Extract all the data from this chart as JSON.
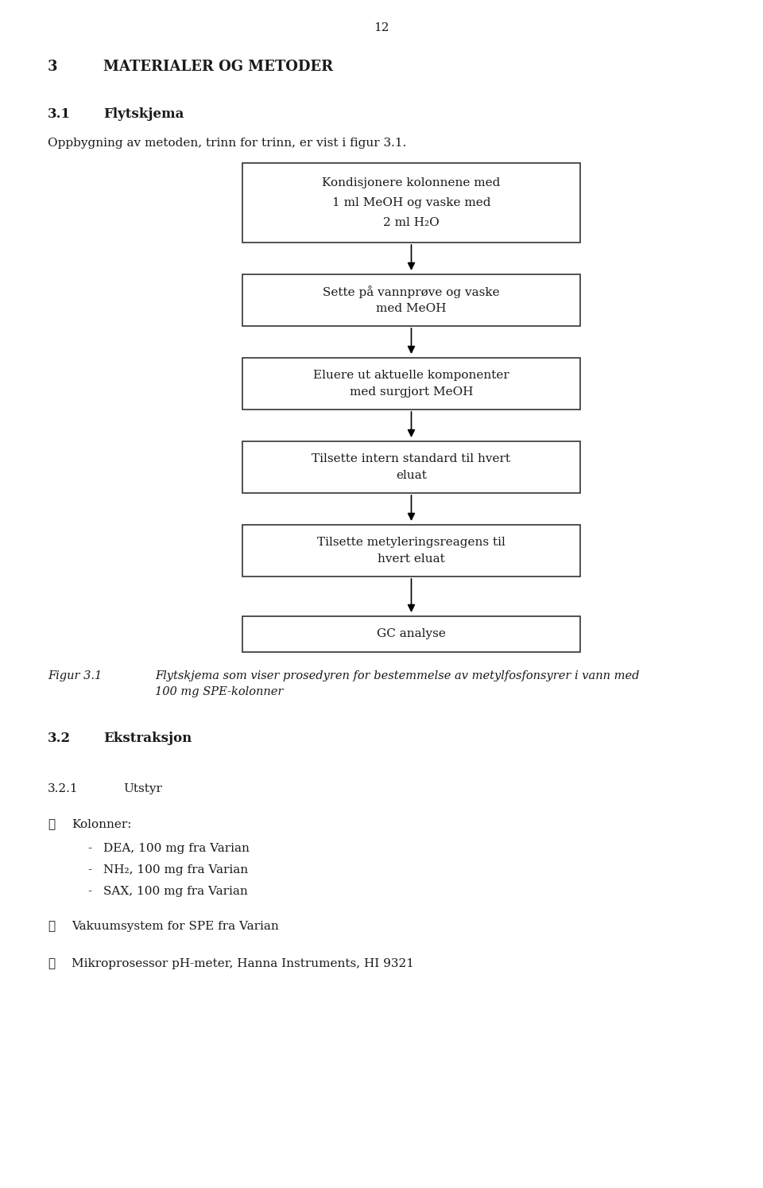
{
  "page_number": "12",
  "section_num": "3",
  "section_title": "MATERIALER OG METODER",
  "subsection_31_num": "3.1",
  "subsection_31_title": "Flytskjema",
  "intro_text": "Oppbygning av metoden, trinn for trinn, er vist i figur 3.1.",
  "flowchart_boxes": [
    "Kondisjonere kolonnene med\n1 ml MeOH og vaske med\n2 ml H₂O",
    "Sette på vannprøve og vaske\nmed MeOH",
    "Eluere ut aktuelle komponenter\nmed surgjort MeOH",
    "Tilsette intern standard til hvert\neluat",
    "Tilsette metyleringsreagens til\nhvert eluat",
    "GC analyse"
  ],
  "figure_label": "Figur 3.1",
  "figure_caption_line1": "Flytskjema som viser prosedyren for bestemmelse av metylfosfonsyrer i vann med",
  "figure_caption_line2": "100 mg SPE-kolonner",
  "subsection_32_num": "3.2",
  "subsection_32_title": "Ekstraksjon",
  "subsection_321_num": "3.2.1",
  "subsection_321_title": "Utstyr",
  "bullet_kolonner": "Kolonner:",
  "kolonner_items": [
    "DEA, 100 mg fra Varian",
    "NH₂, 100 mg fra Varian",
    "SAX, 100 mg fra Varian"
  ],
  "bullet_vakuum": "Vakuumsystem for SPE fra Varian",
  "bullet_micro": "Mikroprosessor pH-meter, Hanna Instruments, HI 9321",
  "bg_color": "#ffffff",
  "text_color": "#1a1a1a",
  "box_edge_color": "#333333"
}
